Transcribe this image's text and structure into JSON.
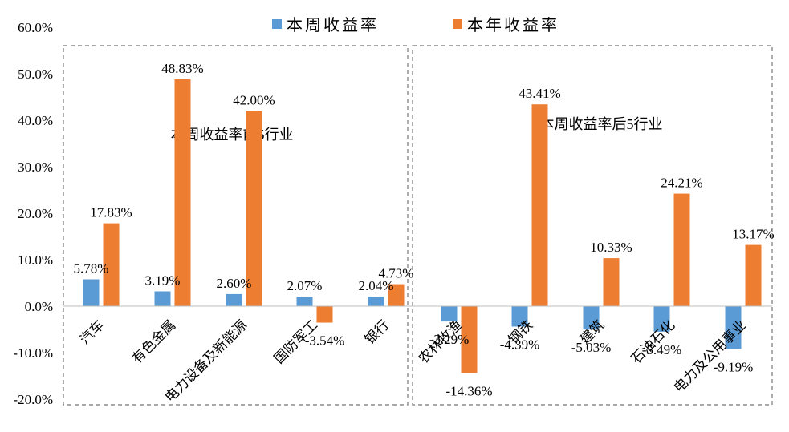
{
  "chart_data": {
    "type": "bar",
    "title": "",
    "xlabel": "",
    "ylabel": "",
    "ylim": [
      -20,
      60
    ],
    "yticks": [
      -20,
      -10,
      0,
      10,
      20,
      30,
      40,
      50,
      60
    ],
    "ytick_labels": [
      "-20.0%",
      "-10.0%",
      "0.0%",
      "10.0%",
      "20.0%",
      "30.0%",
      "40.0%",
      "50.0%",
      "60.0%"
    ],
    "grid": false,
    "legend_position": "top",
    "categories": [
      "汽车",
      "有色金属",
      "电力设备及新能源",
      "国防军工",
      "银行",
      "农林牧渔",
      "钢铁",
      "建筑",
      "石油石化",
      "电力及公用事业"
    ],
    "series": [
      {
        "name": "本周收益率",
        "color": "#5b9bd5",
        "values": [
          5.78,
          3.19,
          2.6,
          2.07,
          2.04,
          -3.29,
          -4.39,
          -5.03,
          -5.49,
          -9.19
        ],
        "labels": [
          "5.78%",
          "3.19%",
          "2.60%",
          "2.07%",
          "2.04%",
          "-3.29%",
          "-4.39%",
          "-5.03%",
          "-5.49%",
          "-9.19%"
        ]
      },
      {
        "name": "本年收益率",
        "color": "#ed7d31",
        "values": [
          17.83,
          48.83,
          42.0,
          -3.54,
          4.73,
          -14.36,
          43.41,
          10.33,
          24.21,
          13.17
        ],
        "labels": [
          "17.83%",
          "48.83%",
          "42.00%",
          "-3.54%",
          "4.73%",
          "-14.36%",
          "43.41%",
          "10.33%",
          "24.21%",
          "13.17%"
        ]
      }
    ],
    "groups": [
      {
        "label": "本周收益率前5行业",
        "from": 0,
        "to": 4
      },
      {
        "label": "本周收益率后5行业",
        "from": 5,
        "to": 9
      }
    ]
  }
}
